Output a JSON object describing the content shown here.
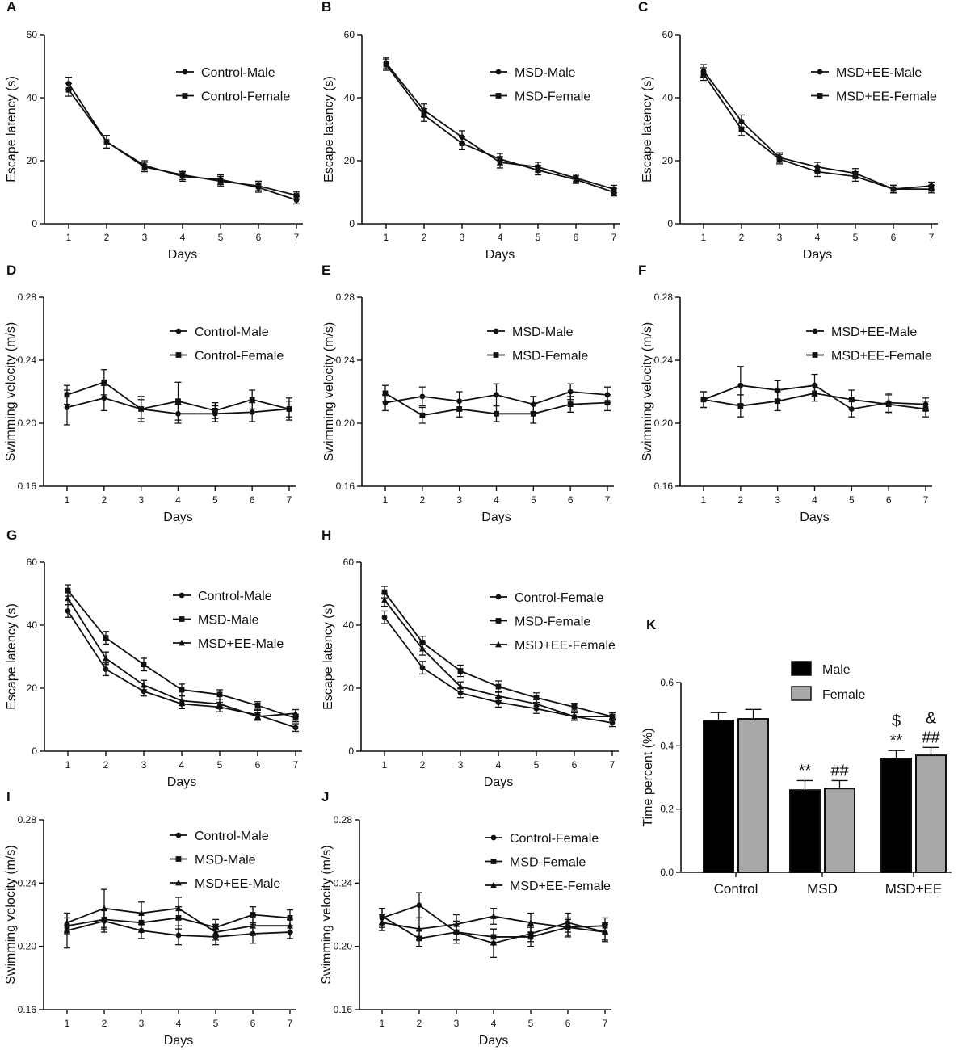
{
  "chart_data": [
    {
      "id": "A",
      "type": "line",
      "panel_label": "A",
      "xlabel": "Days",
      "ylabel": "Escape latency (s)",
      "x": [
        1,
        2,
        3,
        4,
        5,
        6,
        7
      ],
      "ylim": [
        0,
        60
      ],
      "yticks": [
        0,
        20,
        40,
        60
      ],
      "ytick_labels": [
        "0",
        "20",
        "40",
        "60"
      ],
      "legend_position": "top-right",
      "series": [
        {
          "name": "Control-Male",
          "marker": "circle",
          "values": [
            44.5,
            26,
            18.5,
            15,
            14,
            11.5,
            7.5
          ],
          "errors": [
            2,
            2,
            1.5,
            1.5,
            1.5,
            1.5,
            1.2
          ]
        },
        {
          "name": "Control-Female",
          "marker": "square",
          "values": [
            42.5,
            26,
            18,
            15.5,
            13.5,
            12,
            9
          ],
          "errors": [
            2,
            2,
            1.5,
            1.5,
            1.5,
            1.5,
            1.2
          ]
        }
      ]
    },
    {
      "id": "B",
      "type": "line",
      "panel_label": "B",
      "xlabel": "Days",
      "ylabel": "Escape latency (s)",
      "x": [
        1,
        2,
        3,
        4,
        5,
        6,
        7
      ],
      "ylim": [
        0,
        60
      ],
      "yticks": [
        0,
        20,
        40,
        60
      ],
      "ytick_labels": [
        "0",
        "20",
        "40",
        "60"
      ],
      "legend_position": "top-right",
      "series": [
        {
          "name": "MSD-Male",
          "marker": "circle",
          "values": [
            51,
            36,
            27.5,
            19.5,
            18,
            14.5,
            11
          ],
          "errors": [
            1.8,
            2,
            2,
            1.8,
            1.5,
            1.2,
            1.2
          ]
        },
        {
          "name": "MSD-Female",
          "marker": "square",
          "values": [
            50.5,
            34.5,
            25.5,
            20.5,
            17,
            14,
            10
          ],
          "errors": [
            1.8,
            2,
            2,
            1.8,
            1.5,
            1.2,
            1.2
          ]
        }
      ]
    },
    {
      "id": "C",
      "type": "line",
      "panel_label": "C",
      "xlabel": "Days",
      "ylabel": "Escape latency (s)",
      "x": [
        1,
        2,
        3,
        4,
        5,
        6,
        7
      ],
      "ylim": [
        0,
        60
      ],
      "yticks": [
        0,
        20,
        40,
        60
      ],
      "ytick_labels": [
        "0",
        "20",
        "40",
        "60"
      ],
      "legend_position": "top-right",
      "series": [
        {
          "name": "MSD+EE-Male",
          "marker": "circle",
          "values": [
            48.5,
            32.5,
            21,
            18,
            16,
            11,
            12
          ],
          "errors": [
            2,
            2,
            1.5,
            1.5,
            1.5,
            1.2,
            1.2
          ]
        },
        {
          "name": "MSD+EE-Female",
          "marker": "square",
          "values": [
            47.5,
            30,
            20.5,
            16.5,
            15,
            11,
            11
          ],
          "errors": [
            2,
            2,
            1.5,
            1.5,
            1.5,
            1.2,
            1.2
          ]
        }
      ]
    },
    {
      "id": "D",
      "type": "line",
      "panel_label": "D",
      "xlabel": "Days",
      "ylabel": "Swimming velocity (m/s)",
      "x": [
        1,
        2,
        3,
        4,
        5,
        6,
        7
      ],
      "ylim": [
        0.16,
        0.28
      ],
      "yticks": [
        0.16,
        0.2,
        0.24,
        0.28
      ],
      "ytick_labels": [
        "0.16",
        "0.20",
        "0.24",
        "0.28"
      ],
      "legend_position": "top-right",
      "series": [
        {
          "name": "Control-Male",
          "marker": "circle",
          "values": [
            0.21,
            0.216,
            0.209,
            0.206,
            0.206,
            0.207,
            0.209
          ],
          "errors": [
            0.011,
            0.008,
            0.006,
            0.006,
            0.005,
            0.006,
            0.005
          ]
        },
        {
          "name": "Control-Female",
          "marker": "square",
          "values": [
            0.218,
            0.226,
            0.209,
            0.214,
            0.208,
            0.215,
            0.209
          ],
          "errors": [
            0.006,
            0.008,
            0.008,
            0.012,
            0.005,
            0.006,
            0.007
          ]
        }
      ]
    },
    {
      "id": "E",
      "type": "line",
      "panel_label": "E",
      "xlabel": "Days",
      "ylabel": "Swimming velocity (m/s)",
      "x": [
        1,
        2,
        3,
        4,
        5,
        6,
        7
      ],
      "ylim": [
        0.16,
        0.28
      ],
      "yticks": [
        0.16,
        0.2,
        0.24,
        0.28
      ],
      "ytick_labels": [
        "0.16",
        "0.20",
        "0.24",
        "0.28"
      ],
      "legend_position": "top-right",
      "series": [
        {
          "name": "MSD-Male",
          "marker": "circle",
          "values": [
            0.213,
            0.217,
            0.214,
            0.218,
            0.212,
            0.22,
            0.218
          ],
          "errors": [
            0.005,
            0.006,
            0.006,
            0.007,
            0.005,
            0.005,
            0.005
          ]
        },
        {
          "name": "MSD-Female",
          "marker": "square",
          "values": [
            0.219,
            0.205,
            0.209,
            0.206,
            0.206,
            0.212,
            0.213
          ],
          "errors": [
            0.005,
            0.005,
            0.005,
            0.005,
            0.006,
            0.005,
            0.005
          ]
        }
      ]
    },
    {
      "id": "F",
      "type": "line",
      "panel_label": "F",
      "xlabel": "Days",
      "ylabel": "Swimming velocity (m/s)",
      "x": [
        1,
        2,
        3,
        4,
        5,
        6,
        7
      ],
      "ylim": [
        0.16,
        0.28
      ],
      "yticks": [
        0.16,
        0.2,
        0.24,
        0.28
      ],
      "ytick_labels": [
        "0.16",
        "0.20",
        "0.24",
        "0.28"
      ],
      "legend_position": "top-right",
      "series": [
        {
          "name": "MSD+EE-Male",
          "marker": "circle",
          "values": [
            0.215,
            0.224,
            0.221,
            0.224,
            0.209,
            0.213,
            0.212
          ],
          "errors": [
            0.005,
            0.012,
            0.006,
            0.007,
            0.005,
            0.006,
            0.004
          ]
        },
        {
          "name": "MSD+EE-Female",
          "marker": "square",
          "values": [
            0.215,
            0.211,
            0.214,
            0.219,
            0.215,
            0.212,
            0.209
          ],
          "errors": [
            0.005,
            0.007,
            0.006,
            0.005,
            0.006,
            0.006,
            0.005
          ]
        }
      ]
    },
    {
      "id": "G",
      "type": "line",
      "panel_label": "G",
      "xlabel": "Days",
      "ylabel": "Escape latency (s)",
      "x": [
        1,
        2,
        3,
        4,
        5,
        6,
        7
      ],
      "ylim": [
        0,
        60
      ],
      "yticks": [
        0,
        20,
        40,
        60
      ],
      "ytick_labels": [
        "0",
        "20",
        "40",
        "60"
      ],
      "legend_position": "top-right",
      "series": [
        {
          "name": "Control-Male",
          "marker": "circle",
          "values": [
            44.5,
            26,
            19,
            15,
            14,
            11.5,
            7.5
          ],
          "errors": [
            2,
            2,
            1.5,
            1.5,
            1.5,
            1.5,
            1.2
          ]
        },
        {
          "name": "MSD-Male",
          "marker": "square",
          "values": [
            51,
            36,
            27.5,
            19.5,
            18,
            14.5,
            10.5
          ],
          "errors": [
            1.8,
            2,
            2,
            1.8,
            1.5,
            1.2,
            1.2
          ]
        },
        {
          "name": "MSD+EE-Male",
          "marker": "triangle",
          "values": [
            48.5,
            29.5,
            21,
            16,
            15,
            11,
            12
          ],
          "errors": [
            2,
            2,
            1.5,
            1.5,
            1.5,
            1.2,
            1.2
          ]
        }
      ]
    },
    {
      "id": "H",
      "type": "line",
      "panel_label": "H",
      "xlabel": "Days",
      "ylabel": "Escape latency (s)",
      "x": [
        1,
        2,
        3,
        4,
        5,
        6,
        7
      ],
      "ylim": [
        0,
        60
      ],
      "yticks": [
        0,
        20,
        40,
        60
      ],
      "ytick_labels": [
        "0",
        "20",
        "40",
        "60"
      ],
      "legend_position": "top-right",
      "series": [
        {
          "name": "Control-Female",
          "marker": "circle",
          "values": [
            42.5,
            26.5,
            18.5,
            15.5,
            13.5,
            11,
            9
          ],
          "errors": [
            2,
            2,
            1.5,
            1.5,
            1.5,
            1.2,
            1.2
          ]
        },
        {
          "name": "MSD-Female",
          "marker": "square",
          "values": [
            50.5,
            34.5,
            25.5,
            20.5,
            17,
            14,
            11
          ],
          "errors": [
            1.8,
            2,
            1.8,
            1.8,
            1.5,
            1.2,
            1.2
          ]
        },
        {
          "name": "MSD+EE-Female",
          "marker": "triangle",
          "values": [
            48,
            32.5,
            20.5,
            17.5,
            15,
            11,
            11
          ],
          "errors": [
            2,
            2,
            1.5,
            1.5,
            1.5,
            1.2,
            1.2
          ]
        }
      ]
    },
    {
      "id": "I",
      "type": "line",
      "panel_label": "I",
      "xlabel": "Days",
      "ylabel": "Swimming velocity (m/s)",
      "x": [
        1,
        2,
        3,
        4,
        5,
        6,
        7
      ],
      "ylim": [
        0.16,
        0.28
      ],
      "yticks": [
        0.16,
        0.2,
        0.24,
        0.28
      ],
      "ytick_labels": [
        "0.16",
        "0.20",
        "0.24",
        "0.28"
      ],
      "legend_position": "top-right",
      "series": [
        {
          "name": "Control-Male",
          "marker": "circle",
          "values": [
            0.21,
            0.216,
            0.21,
            0.207,
            0.206,
            0.208,
            0.209
          ],
          "errors": [
            0.011,
            0.007,
            0.005,
            0.006,
            0.005,
            0.006,
            0.004
          ]
        },
        {
          "name": "MSD-Male",
          "marker": "square",
          "values": [
            0.213,
            0.217,
            0.215,
            0.218,
            0.212,
            0.22,
            0.218
          ],
          "errors": [
            0.005,
            0.006,
            0.006,
            0.007,
            0.005,
            0.005,
            0.005
          ]
        },
        {
          "name": "MSD+EE-Male",
          "marker": "triangle",
          "values": [
            0.215,
            0.224,
            0.221,
            0.224,
            0.209,
            0.213,
            0.213
          ],
          "errors": [
            0.006,
            0.012,
            0.007,
            0.007,
            0.005,
            0.006,
            0.004
          ]
        }
      ]
    },
    {
      "id": "J",
      "type": "line",
      "panel_label": "J",
      "xlabel": "Days",
      "ylabel": "Swimming velocity (m/s)",
      "x": [
        1,
        2,
        3,
        4,
        5,
        6,
        7
      ],
      "ylim": [
        0.16,
        0.28
      ],
      "yticks": [
        0.16,
        0.2,
        0.24,
        0.28
      ],
      "ytick_labels": [
        "0.16",
        "0.20",
        "0.24",
        "0.28"
      ],
      "legend_position": "top-right",
      "series": [
        {
          "name": "Control-Female",
          "marker": "circle",
          "values": [
            0.218,
            0.226,
            0.209,
            0.202,
            0.208,
            0.215,
            0.209
          ],
          "errors": [
            0.006,
            0.008,
            0.007,
            0.009,
            0.005,
            0.006,
            0.006
          ]
        },
        {
          "name": "MSD-Female",
          "marker": "square",
          "values": [
            0.219,
            0.205,
            0.209,
            0.206,
            0.206,
            0.212,
            0.213
          ],
          "errors": [
            0.005,
            0.005,
            0.005,
            0.005,
            0.006,
            0.005,
            0.005
          ]
        },
        {
          "name": "MSD+EE-Female",
          "marker": "triangle",
          "values": [
            0.215,
            0.211,
            0.214,
            0.219,
            0.215,
            0.212,
            0.209
          ],
          "errors": [
            0.005,
            0.007,
            0.006,
            0.005,
            0.006,
            0.006,
            0.005
          ]
        }
      ]
    },
    {
      "id": "K",
      "type": "bar",
      "panel_label": "K",
      "ylabel": "Time percent (%)",
      "categories": [
        "Control",
        "MSD",
        "MSD+EE"
      ],
      "ylim": [
        0,
        0.6
      ],
      "yticks": [
        0,
        0.2,
        0.4,
        0.6
      ],
      "ytick_labels": [
        "0.0",
        "0.2",
        "0.4",
        "0.6"
      ],
      "legend_position": "top-right",
      "series": [
        {
          "name": "Male",
          "color": "#000000",
          "values": [
            0.48,
            0.26,
            0.36
          ],
          "errors": [
            0.025,
            0.03,
            0.025
          ]
        },
        {
          "name": "Female",
          "color": "#a8a8a8",
          "values": [
            0.485,
            0.265,
            0.37
          ],
          "errors": [
            0.03,
            0.025,
            0.025
          ]
        }
      ],
      "annotations": [
        {
          "category": "MSD",
          "series": "Male",
          "lines": [
            "**"
          ]
        },
        {
          "category": "MSD",
          "series": "Female",
          "lines": [
            "##"
          ]
        },
        {
          "category": "MSD+EE",
          "series": "Male",
          "lines": [
            "$",
            "**"
          ]
        },
        {
          "category": "MSD+EE",
          "series": "Female",
          "lines": [
            "&",
            "##"
          ]
        }
      ]
    }
  ]
}
